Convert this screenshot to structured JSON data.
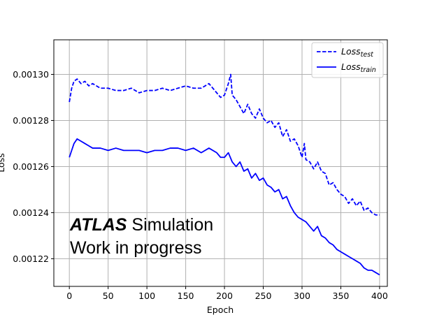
{
  "chart_data": {
    "type": "line",
    "xlabel": "Epoch",
    "ylabel": "Loss",
    "xlim": [
      -20,
      410
    ],
    "ylim": [
      0.001208,
      0.001315
    ],
    "x_ticks": [
      0,
      50,
      100,
      150,
      200,
      250,
      300,
      350,
      400
    ],
    "y_ticks": [
      0.00122,
      0.00124,
      0.00126,
      0.00128,
      0.0013
    ],
    "y_tick_labels": [
      "0.00122",
      "0.00124",
      "0.00126",
      "0.00128",
      "0.00130"
    ],
    "grid": true,
    "legend_position": "top-right",
    "annotation": {
      "bold": "ATLAS",
      "rest": " Simulation",
      "line2": "Work in progress"
    },
    "series": [
      {
        "name_main": "Loss",
        "name_sub": "test",
        "style": "dashed",
        "color": "#0000ff",
        "x": [
          0,
          3,
          6,
          10,
          15,
          20,
          25,
          30,
          40,
          50,
          60,
          70,
          80,
          90,
          100,
          110,
          120,
          130,
          140,
          150,
          160,
          170,
          180,
          190,
          195,
          200,
          205,
          208,
          210,
          215,
          220,
          225,
          230,
          235,
          240,
          245,
          250,
          255,
          260,
          265,
          270,
          275,
          280,
          285,
          290,
          295,
          300,
          303,
          305,
          310,
          315,
          320,
          325,
          330,
          335,
          340,
          345,
          350,
          355,
          360,
          365,
          370,
          375,
          380,
          385,
          390,
          395,
          400
        ],
        "y": [
          0.001288,
          0.001294,
          0.001297,
          0.001298,
          0.001296,
          0.001297,
          0.001295,
          0.001296,
          0.001294,
          0.001294,
          0.001293,
          0.001293,
          0.001294,
          0.001292,
          0.001293,
          0.001293,
          0.001294,
          0.001293,
          0.001294,
          0.001295,
          0.001294,
          0.001294,
          0.001296,
          0.001292,
          0.00129,
          0.001291,
          0.001296,
          0.0013,
          0.001291,
          0.001289,
          0.001286,
          0.001283,
          0.001287,
          0.001283,
          0.001281,
          0.001285,
          0.001281,
          0.001279,
          0.00128,
          0.001277,
          0.001279,
          0.001273,
          0.001276,
          0.001271,
          0.001272,
          0.001269,
          0.001264,
          0.00127,
          0.001263,
          0.001262,
          0.001259,
          0.001262,
          0.001258,
          0.001257,
          0.001252,
          0.001253,
          0.00125,
          0.001248,
          0.001247,
          0.001244,
          0.001246,
          0.001243,
          0.001245,
          0.001241,
          0.001242,
          0.00124,
          0.001239,
          0.001239
        ]
      },
      {
        "name_main": "Loss",
        "name_sub": "train",
        "style": "solid",
        "color": "#0000ff",
        "x": [
          0,
          3,
          6,
          10,
          15,
          20,
          25,
          30,
          40,
          50,
          60,
          70,
          80,
          90,
          100,
          110,
          120,
          130,
          140,
          150,
          160,
          170,
          180,
          190,
          195,
          200,
          205,
          210,
          215,
          220,
          225,
          230,
          235,
          240,
          245,
          250,
          255,
          260,
          265,
          270,
          275,
          280,
          285,
          290,
          295,
          300,
          305,
          310,
          315,
          320,
          325,
          330,
          335,
          340,
          345,
          350,
          355,
          360,
          365,
          370,
          375,
          380,
          385,
          390,
          395,
          400
        ],
        "y": [
          0.001264,
          0.001267,
          0.00127,
          0.001272,
          0.001271,
          0.00127,
          0.001269,
          0.001268,
          0.001268,
          0.001267,
          0.001268,
          0.001267,
          0.001267,
          0.001267,
          0.001266,
          0.001267,
          0.001267,
          0.001268,
          0.001268,
          0.001267,
          0.001268,
          0.001266,
          0.001268,
          0.001266,
          0.001264,
          0.001264,
          0.001266,
          0.001262,
          0.00126,
          0.001262,
          0.001258,
          0.001259,
          0.001255,
          0.001257,
          0.001254,
          0.001255,
          0.001252,
          0.001251,
          0.001249,
          0.00125,
          0.001246,
          0.001247,
          0.001243,
          0.00124,
          0.001238,
          0.001237,
          0.001236,
          0.001234,
          0.001232,
          0.001234,
          0.00123,
          0.001229,
          0.001227,
          0.001226,
          0.001224,
          0.001223,
          0.001222,
          0.001221,
          0.00122,
          0.001219,
          0.001218,
          0.001216,
          0.001215,
          0.001215,
          0.001214,
          0.001213
        ]
      }
    ]
  }
}
